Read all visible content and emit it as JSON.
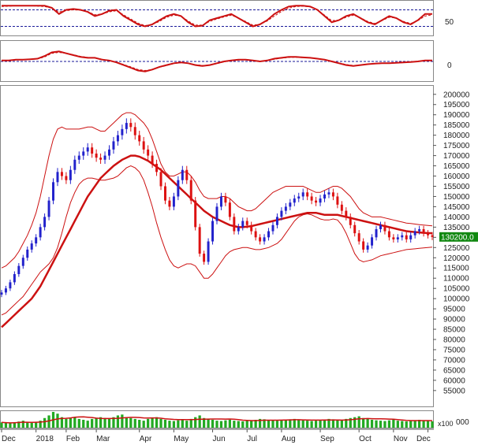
{
  "colors": {
    "up": "#2222cc",
    "down": "#dd1111",
    "ma": "#cc1111",
    "band": "#cc1111",
    "volume": "#22aa22",
    "grid": "#1a1a99",
    "price_tag_bg": "#118811"
  },
  "chart_data": [
    {
      "type": "line",
      "panel": "oscillator-top",
      "ylabel_ticks": [
        "50"
      ],
      "guide_lines": [
        30,
        70
      ],
      "ylim": [
        10,
        90
      ],
      "series": [
        {
          "values": [
            80,
            80,
            80,
            80,
            80,
            80,
            80,
            75,
            60,
            70,
            72,
            70,
            65,
            55,
            60,
            68,
            70,
            55,
            45,
            35,
            30,
            35,
            45,
            55,
            60,
            55,
            40,
            30,
            32,
            45,
            50,
            55,
            60,
            50,
            40,
            30,
            35,
            45,
            60,
            70,
            78,
            80,
            80,
            78,
            70,
            55,
            40,
            45,
            55,
            60,
            50,
            40,
            35,
            45,
            55,
            50,
            40,
            35,
            45,
            60,
            60
          ]
        },
        {
          "values": [
            78,
            79,
            80,
            80,
            80,
            79,
            78,
            74,
            65,
            68,
            70,
            69,
            66,
            58,
            60,
            65,
            68,
            58,
            48,
            38,
            32,
            35,
            42,
            52,
            57,
            55,
            43,
            33,
            33,
            42,
            48,
            53,
            57,
            50,
            42,
            33,
            35,
            43,
            55,
            66,
            74,
            78,
            79,
            77,
            70,
            57,
            44,
            45,
            52,
            57,
            51,
            42,
            37,
            44,
            52,
            50,
            42,
            37,
            44,
            55,
            58
          ]
        }
      ]
    },
    {
      "type": "line",
      "panel": "oscillator-bottom",
      "ylabel_ticks": [
        "0"
      ],
      "guide_lines": [
        0
      ],
      "ylim": [
        -1,
        1
      ],
      "series": [
        {
          "values": [
            0.05,
            0.05,
            0.1,
            0.1,
            0.12,
            0.15,
            0.3,
            0.5,
            0.55,
            0.45,
            0.35,
            0.25,
            0.2,
            0.2,
            0.1,
            0.05,
            -0.05,
            -0.2,
            -0.35,
            -0.5,
            -0.55,
            -0.45,
            -0.3,
            -0.2,
            -0.1,
            -0.05,
            -0.1,
            -0.2,
            -0.25,
            -0.2,
            -0.1,
            0.0,
            0.05,
            0.1,
            0.1,
            0.05,
            0.0,
            0.05,
            0.15,
            0.2,
            0.25,
            0.25,
            0.22,
            0.2,
            0.15,
            0.1,
            0.0,
            -0.1,
            -0.2,
            -0.25,
            -0.2,
            -0.15,
            -0.12,
            -0.1,
            -0.1,
            -0.08,
            -0.05,
            -0.03,
            0.0,
            0.05,
            0.05
          ]
        },
        {
          "values": [
            0.04,
            0.05,
            0.08,
            0.1,
            0.11,
            0.14,
            0.25,
            0.45,
            0.5,
            0.45,
            0.37,
            0.28,
            0.22,
            0.2,
            0.12,
            0.06,
            -0.03,
            -0.17,
            -0.3,
            -0.45,
            -0.5,
            -0.45,
            -0.32,
            -0.22,
            -0.12,
            -0.07,
            -0.1,
            -0.18,
            -0.22,
            -0.2,
            -0.12,
            -0.02,
            0.04,
            0.08,
            0.09,
            0.06,
            0.02,
            0.05,
            0.12,
            0.18,
            0.22,
            0.23,
            0.22,
            0.2,
            0.15,
            0.1,
            0.02,
            -0.08,
            -0.17,
            -0.22,
            -0.2,
            -0.16,
            -0.13,
            -0.11,
            -0.1,
            -0.08,
            -0.06,
            -0.03,
            0.0,
            0.04,
            0.05
          ]
        }
      ]
    },
    {
      "type": "candlestick",
      "panel": "price",
      "ylim": [
        48000,
        203000
      ],
      "y_ticks": [
        55000,
        60000,
        65000,
        70000,
        75000,
        80000,
        85000,
        90000,
        95000,
        100000,
        105000,
        110000,
        115000,
        120000,
        125000,
        130000,
        135000,
        140000,
        145000,
        150000,
        155000,
        160000,
        165000,
        170000,
        175000,
        180000,
        185000,
        190000,
        195000,
        200000
      ],
      "y_tick_labels": [
        "55000",
        "60000",
        "65000",
        "70000",
        "75000",
        "80000",
        "85000",
        "90000",
        "95000",
        "100000",
        "105000",
        "110000",
        "115000",
        "120000",
        "125000",
        "130000",
        "135000",
        "140000",
        "145000",
        "150000",
        "155000",
        "160000",
        "165000",
        "170000",
        "175000",
        "180000",
        "185000",
        "190000",
        "195000",
        "200000"
      ],
      "last_price_label": "130200.0",
      "last_price": 130200,
      "x_labels": [
        "Dec",
        "2018",
        "Feb",
        "Mar",
        "Apr",
        "May",
        "Jun",
        "Jul",
        "Aug",
        "Sep",
        "Oct",
        "Nov",
        "Dec"
      ],
      "x_label_bars": [
        0,
        8,
        15,
        22,
        32,
        40,
        49,
        57,
        65,
        74,
        83,
        91,
        99
      ],
      "closes": [
        103000,
        105000,
        108000,
        112000,
        116000,
        120000,
        124000,
        127000,
        130000,
        135000,
        140000,
        148000,
        157000,
        162000,
        160000,
        158000,
        163000,
        168000,
        170000,
        172000,
        174000,
        171000,
        169000,
        168000,
        170000,
        173000,
        177000,
        180000,
        183000,
        186000,
        184000,
        180000,
        177000,
        173000,
        170000,
        166000,
        162000,
        155000,
        148000,
        145000,
        150000,
        158000,
        163000,
        158000,
        148000,
        135000,
        122000,
        118000,
        128000,
        138000,
        145000,
        150000,
        147000,
        140000,
        133000,
        135000,
        138000,
        136000,
        133000,
        130000,
        128000,
        130000,
        133000,
        136000,
        140000,
        143000,
        145000,
        147000,
        149000,
        150000,
        152000,
        150000,
        148000,
        147000,
        149000,
        151000,
        152000,
        150000,
        146000,
        143000,
        140000,
        136000,
        132000,
        128000,
        124000,
        126000,
        130000,
        134000,
        136000,
        133000,
        130000,
        129000,
        130000,
        131000,
        129000,
        131000,
        133000,
        134000,
        132000,
        131000,
        130200
      ],
      "ma_long": [
        86000,
        88000,
        90000,
        92000,
        94000,
        96000,
        98000,
        100000,
        103000,
        106000,
        110000,
        114000,
        118000,
        122000,
        126000,
        130000,
        134000,
        138000,
        142000,
        146000,
        150000,
        153000,
        156000,
        159000,
        161000,
        163000,
        165000,
        166500,
        168000,
        169000,
        170000,
        170000,
        169500,
        168500,
        167500,
        166000,
        164500,
        163000,
        161000,
        159000,
        157000,
        155000,
        153000,
        151000,
        149000,
        147000,
        145000,
        143000,
        141500,
        140000,
        139000,
        138000,
        137000,
        136000,
        135500,
        135000,
        135000,
        135200,
        135500,
        136000,
        136500,
        137000,
        137500,
        138000,
        138500,
        139000,
        139500,
        140000,
        140500,
        141000,
        141500,
        142000,
        142000,
        142000,
        141500,
        141000,
        141000,
        141000,
        141000,
        140500,
        140000,
        139500,
        139000,
        138500,
        138000,
        137500,
        137000,
        136500,
        136000,
        135500,
        135000,
        134500,
        134000,
        133500,
        133000,
        132800,
        132600,
        132400,
        132200,
        132100,
        132000
      ],
      "band_upper": [
        115000,
        116000,
        118000,
        120000,
        123000,
        127000,
        131000,
        136000,
        142000,
        150000,
        160000,
        170000,
        178000,
        183000,
        184000,
        183000,
        183000,
        183000,
        183000,
        183500,
        184000,
        184000,
        183000,
        182000,
        182000,
        184000,
        186000,
        188000,
        190000,
        191000,
        191000,
        190000,
        188000,
        186000,
        183000,
        178000,
        172000,
        166000,
        162000,
        160000,
        160000,
        161000,
        162000,
        162000,
        160000,
        157000,
        153000,
        150000,
        149000,
        149000,
        149000,
        150000,
        150000,
        149000,
        147000,
        145000,
        144000,
        143000,
        143000,
        144000,
        146000,
        148000,
        150000,
        152000,
        153000,
        154000,
        155000,
        155000,
        155000,
        155000,
        155000,
        154000,
        153000,
        152000,
        152000,
        153000,
        154000,
        155000,
        155000,
        154000,
        152000,
        150000,
        147000,
        144000,
        142000,
        141000,
        140000,
        140000,
        140000,
        139500,
        139000,
        138500,
        138000,
        137500,
        137000,
        136800,
        136500,
        136200,
        136000,
        135800,
        135600
      ],
      "band_lower": [
        92000,
        93000,
        95000,
        97000,
        99000,
        101000,
        104000,
        107000,
        110000,
        113000,
        115000,
        117000,
        120000,
        125000,
        132000,
        140000,
        147000,
        152000,
        156000,
        158000,
        159000,
        159000,
        158500,
        158000,
        158000,
        158500,
        159000,
        160000,
        162000,
        164000,
        165000,
        164000,
        162000,
        158000,
        152000,
        145000,
        137000,
        130000,
        124000,
        119000,
        116000,
        115000,
        116000,
        117000,
        117000,
        116000,
        113000,
        110000,
        110000,
        112000,
        115000,
        118000,
        121000,
        123000,
        124000,
        124500,
        125000,
        125000,
        124500,
        124000,
        124000,
        124500,
        125000,
        126000,
        127000,
        129000,
        132000,
        135000,
        138000,
        140000,
        141000,
        141500,
        141000,
        140000,
        139000,
        138500,
        138500,
        139000,
        138500,
        136000,
        132000,
        127000,
        122000,
        119000,
        118000,
        118500,
        119000,
        120000,
        121000,
        121500,
        122000,
        122500,
        123000,
        123500,
        124000,
        124200,
        124400,
        124600,
        124800,
        125000,
        125200
      ]
    },
    {
      "type": "bar",
      "panel": "volume",
      "ylabel_ticks": [
        "000",
        "x100"
      ],
      "values": [
        30,
        28,
        25,
        30,
        35,
        40,
        30,
        28,
        32,
        40,
        55,
        70,
        90,
        80,
        60,
        50,
        55,
        60,
        50,
        45,
        40,
        50,
        55,
        60,
        55,
        50,
        60,
        70,
        75,
        60,
        55,
        50,
        45,
        40,
        50,
        55,
        60,
        50,
        45,
        40,
        38,
        42,
        45,
        40,
        50,
        60,
        70,
        55,
        50,
        45,
        40,
        38,
        42,
        45,
        40,
        38,
        36,
        40,
        42,
        45,
        50,
        48,
        45,
        42,
        40,
        42,
        45,
        48,
        50,
        45,
        42,
        40,
        38,
        40,
        42,
        45,
        50,
        48,
        45,
        42,
        50,
        55,
        60,
        65,
        55,
        50,
        45,
        42,
        40,
        38,
        42,
        45,
        40,
        38,
        36,
        40,
        42,
        45,
        40,
        38,
        36
      ]
    }
  ]
}
